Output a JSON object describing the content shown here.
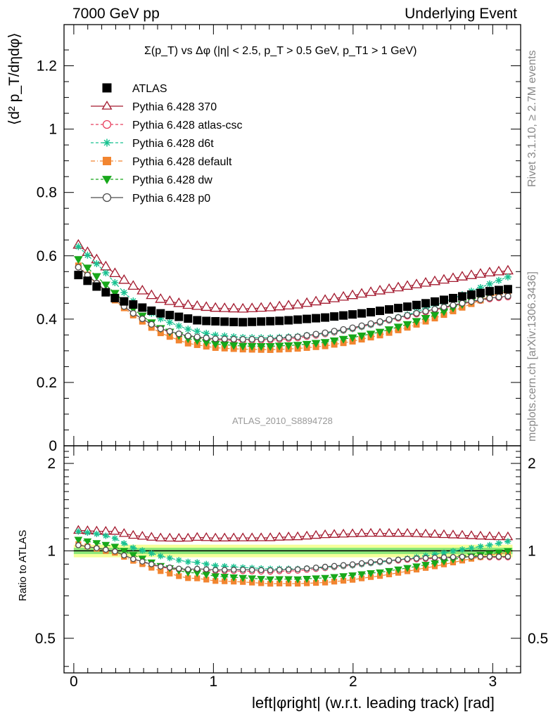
{
  "header": {
    "left": "7000 GeV pp",
    "right": "Underlying Event"
  },
  "side_labels": {
    "rivet": "Rivet 3.1.10, ≥ 2.7M events",
    "mcplots": "mcplots.cern.ch [arXiv:1306.3436]"
  },
  "watermark": "ATLAS_2010_S8894728",
  "colors": {
    "ATLAS": "#000000",
    "370": "#a3192e",
    "atlas_csc": "#e8405f",
    "d6t": "#19c291",
    "default": "#f28530",
    "dw": "#17a81a",
    "p0": "#4d4d4d",
    "band_outer": "#f5ff9a",
    "band_inner": "#8ce87a"
  },
  "chart_data": [
    {
      "type": "scatter",
      "title": "Σ(p_T) vs Δφ (|η| < 2.5, p_T > 0.5 GeV, p_T1 > 1 GeV)",
      "xlabel": "left|φright| (w.r.t. leading track) [rad]",
      "ylabel": "⟨d² p_T/dηdφ⟩",
      "xlim": [
        -0.07,
        3.2
      ],
      "ylim": [
        0,
        1.33
      ],
      "yticks": [
        "0",
        "0.2",
        "0.4",
        "0.6",
        "0.8",
        "1",
        "1.2"
      ],
      "grid": false,
      "legend_position": "top-left",
      "anchors": {
        "ATLAS": [
          [
            0.03,
            0.54
          ],
          [
            0.3,
            0.465
          ],
          [
            0.6,
            0.42
          ],
          [
            0.9,
            0.395
          ],
          [
            1.2,
            0.39
          ],
          [
            1.5,
            0.395
          ],
          [
            1.8,
            0.405
          ],
          [
            2.1,
            0.42
          ],
          [
            2.4,
            0.44
          ],
          [
            2.7,
            0.465
          ],
          [
            3.0,
            0.49
          ],
          [
            3.12,
            0.495
          ]
        ],
        "370": [
          [
            0.03,
            0.635
          ],
          [
            0.2,
            0.575
          ],
          [
            0.4,
            0.51
          ],
          [
            0.6,
            0.465
          ],
          [
            0.8,
            0.445
          ],
          [
            1.0,
            0.435
          ],
          [
            1.2,
            0.432
          ],
          [
            1.4,
            0.436
          ],
          [
            1.6,
            0.445
          ],
          [
            1.8,
            0.46
          ],
          [
            2.0,
            0.475
          ],
          [
            2.2,
            0.49
          ],
          [
            2.4,
            0.505
          ],
          [
            2.6,
            0.52
          ],
          [
            2.8,
            0.535
          ],
          [
            3.0,
            0.548
          ],
          [
            3.12,
            0.553
          ]
        ],
        "atlas_csc": [
          [
            0.03,
            0.565
          ],
          [
            0.2,
            0.5
          ],
          [
            0.4,
            0.425
          ],
          [
            0.6,
            0.37
          ],
          [
            0.8,
            0.345
          ],
          [
            1.0,
            0.335
          ],
          [
            1.2,
            0.332
          ],
          [
            1.4,
            0.333
          ],
          [
            1.6,
            0.34
          ],
          [
            1.8,
            0.353
          ],
          [
            2.0,
            0.37
          ],
          [
            2.2,
            0.39
          ],
          [
            2.4,
            0.41
          ],
          [
            2.6,
            0.43
          ],
          [
            2.8,
            0.45
          ],
          [
            3.0,
            0.465
          ],
          [
            3.12,
            0.47
          ]
        ],
        "d6t": [
          [
            0.03,
            0.63
          ],
          [
            0.2,
            0.56
          ],
          [
            0.4,
            0.465
          ],
          [
            0.6,
            0.405
          ],
          [
            0.8,
            0.37
          ],
          [
            1.0,
            0.35
          ],
          [
            1.2,
            0.342
          ],
          [
            1.4,
            0.341
          ],
          [
            1.6,
            0.345
          ],
          [
            1.8,
            0.355
          ],
          [
            2.0,
            0.37
          ],
          [
            2.2,
            0.39
          ],
          [
            2.4,
            0.415
          ],
          [
            2.6,
            0.445
          ],
          [
            2.8,
            0.48
          ],
          [
            3.0,
            0.515
          ],
          [
            3.12,
            0.535
          ]
        ],
        "default": [
          [
            0.03,
            0.57
          ],
          [
            0.2,
            0.495
          ],
          [
            0.4,
            0.42
          ],
          [
            0.6,
            0.36
          ],
          [
            0.8,
            0.325
          ],
          [
            1.0,
            0.31
          ],
          [
            1.2,
            0.305
          ],
          [
            1.4,
            0.303
          ],
          [
            1.6,
            0.307
          ],
          [
            1.8,
            0.315
          ],
          [
            2.0,
            0.33
          ],
          [
            2.2,
            0.35
          ],
          [
            2.4,
            0.375
          ],
          [
            2.6,
            0.405
          ],
          [
            2.8,
            0.44
          ],
          [
            3.0,
            0.475
          ],
          [
            3.12,
            0.49
          ]
        ],
        "dw": [
          [
            0.03,
            0.59
          ],
          [
            0.2,
            0.52
          ],
          [
            0.4,
            0.44
          ],
          [
            0.6,
            0.375
          ],
          [
            0.8,
            0.34
          ],
          [
            1.0,
            0.322
          ],
          [
            1.2,
            0.315
          ],
          [
            1.4,
            0.314
          ],
          [
            1.6,
            0.318
          ],
          [
            1.8,
            0.327
          ],
          [
            2.0,
            0.342
          ],
          [
            2.2,
            0.36
          ],
          [
            2.4,
            0.385
          ],
          [
            2.6,
            0.415
          ],
          [
            2.8,
            0.45
          ],
          [
            3.0,
            0.48
          ],
          [
            3.12,
            0.495
          ]
        ],
        "p0": [
          [
            0.03,
            0.565
          ],
          [
            0.2,
            0.5
          ],
          [
            0.4,
            0.425
          ],
          [
            0.6,
            0.372
          ],
          [
            0.8,
            0.348
          ],
          [
            1.0,
            0.338
          ],
          [
            1.2,
            0.336
          ],
          [
            1.4,
            0.337
          ],
          [
            1.6,
            0.344
          ],
          [
            1.8,
            0.357
          ],
          [
            2.0,
            0.373
          ],
          [
            2.2,
            0.393
          ],
          [
            2.4,
            0.413
          ],
          [
            2.6,
            0.433
          ],
          [
            2.8,
            0.452
          ],
          [
            3.0,
            0.468
          ],
          [
            3.12,
            0.473
          ]
        ]
      }
    },
    {
      "type": "scatter",
      "ylabel": "Ratio to ATLAS",
      "xlim": [
        -0.07,
        3.2
      ],
      "ylim": [
        0.38,
        2.3
      ],
      "yticks": [
        "0.5",
        "1",
        "2"
      ],
      "xticks": [
        "0",
        "1",
        "2",
        "3"
      ],
      "band_outer": [
        0.95,
        1.05
      ],
      "band_inner": [
        0.975,
        1.025
      ]
    }
  ],
  "legend": [
    {
      "key": "ATLAS",
      "label": "ATLAS",
      "marker": "square",
      "filled": true,
      "line": "none"
    },
    {
      "key": "370",
      "label": "Pythia 6.428 370",
      "marker": "triangle",
      "filled": false,
      "line": "solid"
    },
    {
      "key": "atlas_csc",
      "label": "Pythia 6.428 atlas-csc",
      "marker": "circle",
      "filled": false,
      "line": "dashed"
    },
    {
      "key": "d6t",
      "label": "Pythia 6.428 d6t",
      "marker": "star",
      "filled": true,
      "line": "dashed"
    },
    {
      "key": "default",
      "label": "Pythia 6.428 default",
      "marker": "square",
      "filled": true,
      "line": "dashdot"
    },
    {
      "key": "dw",
      "label": "Pythia 6.428 dw",
      "marker": "tridown",
      "filled": true,
      "line": "dashed"
    },
    {
      "key": "p0",
      "label": "Pythia 6.428 p0",
      "marker": "circle",
      "filled": false,
      "line": "solid"
    }
  ]
}
